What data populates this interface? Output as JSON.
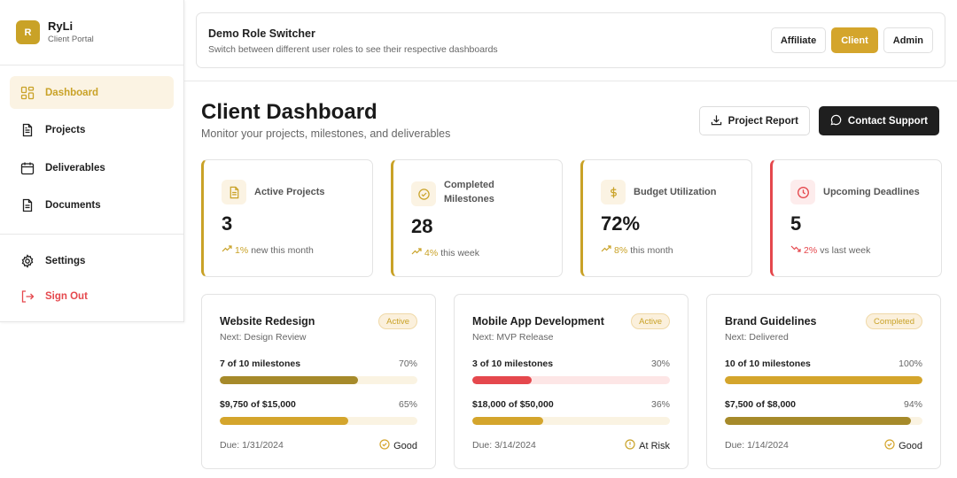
{
  "brand": {
    "logo_letter": "R",
    "name": "RyLi",
    "subtitle": "Client Portal"
  },
  "nav": {
    "items": [
      {
        "label": "Dashboard",
        "icon": "dashboard-grid-icon",
        "active": true
      },
      {
        "label": "Projects",
        "icon": "file-text-icon",
        "active": false
      },
      {
        "label": "Deliverables",
        "icon": "calendar-icon",
        "active": false
      },
      {
        "label": "Documents",
        "icon": "document-icon",
        "active": false
      }
    ],
    "bottom": [
      {
        "label": "Settings",
        "icon": "gear-icon"
      },
      {
        "label": "Sign Out",
        "icon": "sign-out-icon"
      }
    ]
  },
  "switcher": {
    "title": "Demo Role Switcher",
    "subtitle": "Switch between different user roles to see their respective dashboards",
    "roles": [
      "Affiliate",
      "Client",
      "Admin"
    ],
    "active_role": "Client"
  },
  "header": {
    "title": "Client Dashboard",
    "subtitle": "Monitor your projects, milestones, and deliverables",
    "report_button": "Project Report",
    "support_button": "Contact Support"
  },
  "stats": [
    {
      "label": "Active Projects",
      "value": "3",
      "trend_pct": "1%",
      "trend_text": "new this month",
      "icon": "file-icon",
      "direction": "up"
    },
    {
      "label": "Completed Milestones",
      "value": "28",
      "trend_pct": "4%",
      "trend_text": "this week",
      "icon": "check-circle-icon",
      "direction": "up"
    },
    {
      "label": "Budget Utilization",
      "value": "72%",
      "trend_pct": "8%",
      "trend_text": "this month",
      "icon": "dollar-icon",
      "direction": "up"
    },
    {
      "label": "Upcoming Deadlines",
      "value": "5",
      "trend_pct": "2%",
      "trend_text": "vs last week",
      "icon": "clock-icon",
      "direction": "down"
    }
  ],
  "projects": [
    {
      "title": "Website Redesign",
      "badge": "Active",
      "next": "Next: Design Review",
      "milestones_label": "7 of 10 milestones",
      "milestones_pct": "70%",
      "milestones_fraction": 0.7,
      "milestones_color": "#a68a2a",
      "budget_label": "$9,750 of $15,000",
      "budget_pct": "65%",
      "budget_fraction": 0.65,
      "budget_color": "#d4a52c",
      "due": "Due: 1/31/2024",
      "status": "Good",
      "status_icon": "check-circle-icon",
      "status_color": "#d4a52c"
    },
    {
      "title": "Mobile App Development",
      "badge": "Active",
      "next": "Next: MVP Release",
      "milestones_label": "3 of 10 milestones",
      "milestones_pct": "30%",
      "milestones_fraction": 0.3,
      "milestones_color": "#e5484d",
      "budget_label": "$18,000 of $50,000",
      "budget_pct": "36%",
      "budget_fraction": 0.36,
      "budget_color": "#d4a52c",
      "due": "Due: 3/14/2024",
      "status": "At Risk",
      "status_icon": "alert-circle-icon",
      "status_color": "#c9a227"
    },
    {
      "title": "Brand Guidelines",
      "badge": "Completed",
      "next": "Next: Delivered",
      "milestones_label": "10 of 10 milestones",
      "milestones_pct": "100%",
      "milestones_fraction": 1.0,
      "milestones_color": "#d4a52c",
      "budget_label": "$7,500 of $8,000",
      "budget_pct": "94%",
      "budget_fraction": 0.94,
      "budget_color": "#a68a2a",
      "due": "Due: 1/14/2024",
      "status": "Good",
      "status_icon": "check-circle-icon",
      "status_color": "#d4a52c"
    }
  ]
}
